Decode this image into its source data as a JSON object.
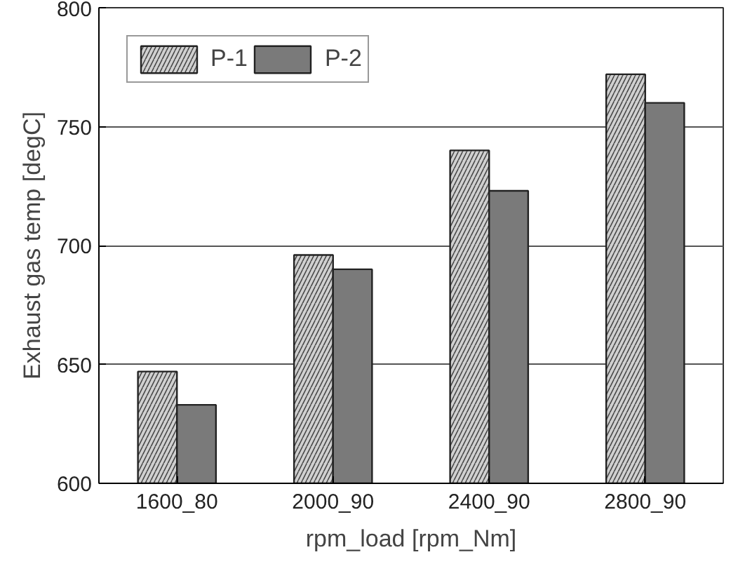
{
  "chart_data": {
    "type": "bar",
    "xlabel": "rpm_load [rpm_Nm]",
    "ylabel": "Exhaust gas temp [degC]",
    "categories": [
      "1600_80",
      "2000_90",
      "2400_90",
      "2800_90"
    ],
    "series": [
      {
        "name": "P-1",
        "color": "#d0d0d0",
        "values": [
          647,
          696,
          740,
          772
        ]
      },
      {
        "name": "P-2",
        "color": "#7a7a7a",
        "values": [
          633,
          690,
          723,
          760
        ]
      }
    ],
    "ylim": [
      600,
      800
    ],
    "yticks": [
      600,
      650,
      700,
      750,
      800
    ],
    "grid": "y",
    "legend": "top left"
  }
}
